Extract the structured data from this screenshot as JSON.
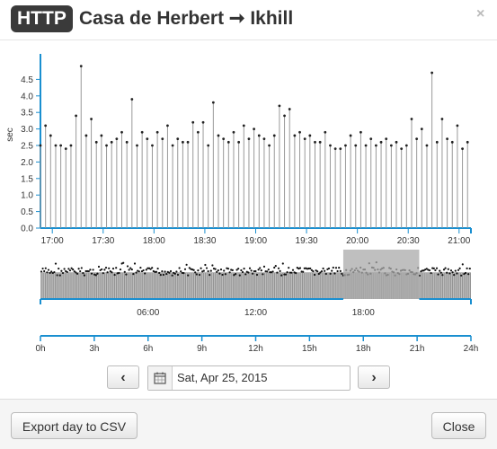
{
  "header": {
    "protocol_badge": "HTTP",
    "title": "Casa de Herbert ➞ Ikhill",
    "close_glyph": "×"
  },
  "colors": {
    "axis": "#1a8fd0",
    "bars": "#999999",
    "selection": "#aaaaaa",
    "badge": "#3a3a3a"
  },
  "chart_data": [
    {
      "type": "scatter",
      "title": "",
      "xlabel": "",
      "ylabel": "sec",
      "ylim": [
        0,
        5.0
      ],
      "yticks": [
        "0.0",
        "0.5",
        "1.0",
        "1.5",
        "2.0",
        "2.5",
        "3.0",
        "3.5",
        "4.0",
        "4.5"
      ],
      "xlim": [
        "16:53",
        "21:07"
      ],
      "xtick_labels": [
        "17:00",
        "17:30",
        "18:00",
        "18:30",
        "19:00",
        "19:30",
        "20:00",
        "20:30",
        "21:00"
      ],
      "x": [
        "16:53",
        "16:56",
        "16:59",
        "17:02",
        "17:05",
        "17:08",
        "17:11",
        "17:14",
        "17:17",
        "17:20",
        "17:23",
        "17:26",
        "17:29",
        "17:32",
        "17:35",
        "17:38",
        "17:41",
        "17:44",
        "17:47",
        "17:50",
        "17:53",
        "17:56",
        "17:59",
        "18:02",
        "18:05",
        "18:08",
        "18:11",
        "18:14",
        "18:17",
        "18:20",
        "18:23",
        "18:26",
        "18:29",
        "18:32",
        "18:35",
        "18:38",
        "18:41",
        "18:44",
        "18:47",
        "18:50",
        "18:53",
        "18:56",
        "18:59",
        "19:02",
        "19:05",
        "19:08",
        "19:11",
        "19:14",
        "19:17",
        "19:20",
        "19:23",
        "19:26",
        "19:29",
        "19:32",
        "19:35",
        "19:38",
        "19:41",
        "19:44",
        "19:47",
        "19:50",
        "19:53",
        "19:56",
        "19:59",
        "20:02",
        "20:05",
        "20:08",
        "20:11",
        "20:14",
        "20:17",
        "20:20",
        "20:23",
        "20:26",
        "20:29",
        "20:32",
        "20:35",
        "20:38",
        "20:41",
        "20:44",
        "20:47",
        "20:50",
        "20:53",
        "20:56",
        "20:59",
        "21:02",
        "21:05"
      ],
      "values": [
        2.5,
        3.1,
        2.8,
        2.5,
        2.5,
        2.4,
        2.5,
        3.4,
        4.9,
        2.8,
        3.3,
        2.6,
        2.8,
        2.5,
        2.6,
        2.7,
        2.9,
        2.6,
        3.9,
        2.5,
        2.9,
        2.7,
        2.5,
        2.9,
        2.7,
        3.1,
        2.5,
        2.7,
        2.6,
        2.6,
        3.2,
        2.9,
        3.2,
        2.5,
        3.8,
        2.8,
        2.7,
        2.6,
        2.9,
        2.6,
        3.1,
        2.7,
        3.0,
        2.8,
        2.7,
        2.5,
        2.8,
        3.7,
        3.4,
        3.6,
        2.8,
        2.9,
        2.7,
        2.8,
        2.6,
        2.6,
        2.9,
        2.5,
        2.4,
        2.4,
        2.5,
        2.8,
        2.5,
        2.9,
        2.5,
        2.7,
        2.5,
        2.6,
        2.7,
        2.5,
        2.6,
        2.4,
        2.5,
        3.3,
        2.7,
        3.0,
        2.5,
        4.7,
        2.6,
        3.3,
        2.7,
        2.6,
        3.1,
        2.4,
        2.6
      ]
    },
    {
      "type": "scatter",
      "title": "",
      "xlabel": "",
      "ylabel": "",
      "xlim": [
        "00:00",
        "24:00"
      ],
      "xtick_labels": [
        "06:00",
        "12:00",
        "18:00"
      ],
      "selection": [
        "16:53",
        "21:07"
      ],
      "overview_ticks": [
        "0h",
        "3h",
        "6h",
        "9h",
        "12h",
        "15h",
        "18h",
        "21h",
        "24h"
      ]
    }
  ],
  "date_nav": {
    "prev_glyph": "‹",
    "next_glyph": "›",
    "date_value": "Sat, Apr 25, 2015",
    "calendar_icon": "calendar-icon"
  },
  "footer": {
    "export_label": "Export day to CSV",
    "close_label": "Close"
  }
}
